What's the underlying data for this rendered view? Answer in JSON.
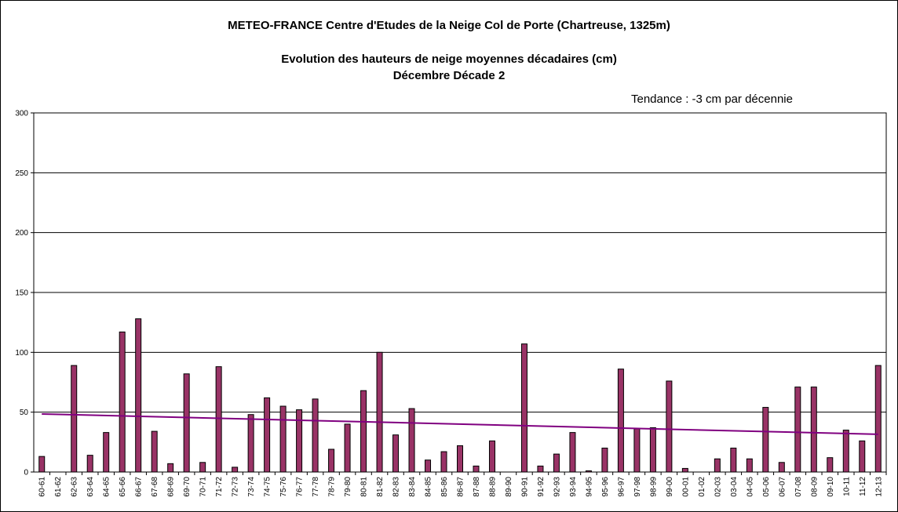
{
  "chart_data": {
    "type": "bar",
    "title": "METEO-FRANCE  Centre d'Etudes de la Neige   Col de Porte  (Chartreuse, 1325m)",
    "subtitle": "Evolution des hauteurs de neige moyennes décadaires (cm)",
    "subtitle2": "Décembre  Décade 2",
    "annotation": "Tendance : -3 cm par décennie",
    "xlabel": "",
    "ylabel": "",
    "ylim": [
      0,
      300
    ],
    "yticks": [
      0,
      50,
      100,
      150,
      200,
      250,
      300
    ],
    "grid": true,
    "legend": "none",
    "bar_color": "#993366",
    "trend_color": "#800080",
    "categories": [
      "60-61",
      "61-62",
      "62-63",
      "63-64",
      "64-65",
      "65-66",
      "66-67",
      "67-68",
      "68-69",
      "69-70",
      "70-71",
      "71-72",
      "72-73",
      "73-74",
      "74-75",
      "75-76",
      "76-77",
      "77-78",
      "78-79",
      "79-80",
      "80-81",
      "81-82",
      "82-83",
      "83-84",
      "84-85",
      "85-86",
      "86-87",
      "87-88",
      "88-89",
      "89-90",
      "90-91",
      "91-92",
      "92-93",
      "93-94",
      "94-95",
      "95-96",
      "96-97",
      "97-98",
      "98-99",
      "99-00",
      "00-01",
      "01-02",
      "02-03",
      "03-04",
      "04-05",
      "05-06",
      "06-07",
      "07-08",
      "08-09",
      "09-10",
      "10-11",
      "11-12",
      "12-13"
    ],
    "values": [
      13,
      0,
      89,
      14,
      33,
      117,
      128,
      34,
      7,
      82,
      8,
      88,
      4,
      48,
      62,
      55,
      52,
      61,
      19,
      40,
      68,
      100,
      31,
      53,
      10,
      17,
      22,
      5,
      26,
      0,
      107,
      5,
      15,
      33,
      1,
      20,
      86,
      36,
      37,
      76,
      3,
      0,
      11,
      20,
      11,
      54,
      8,
      71,
      71,
      12,
      35,
      26,
      89
    ],
    "trend": {
      "start": 48.5,
      "end": 31.5
    }
  }
}
